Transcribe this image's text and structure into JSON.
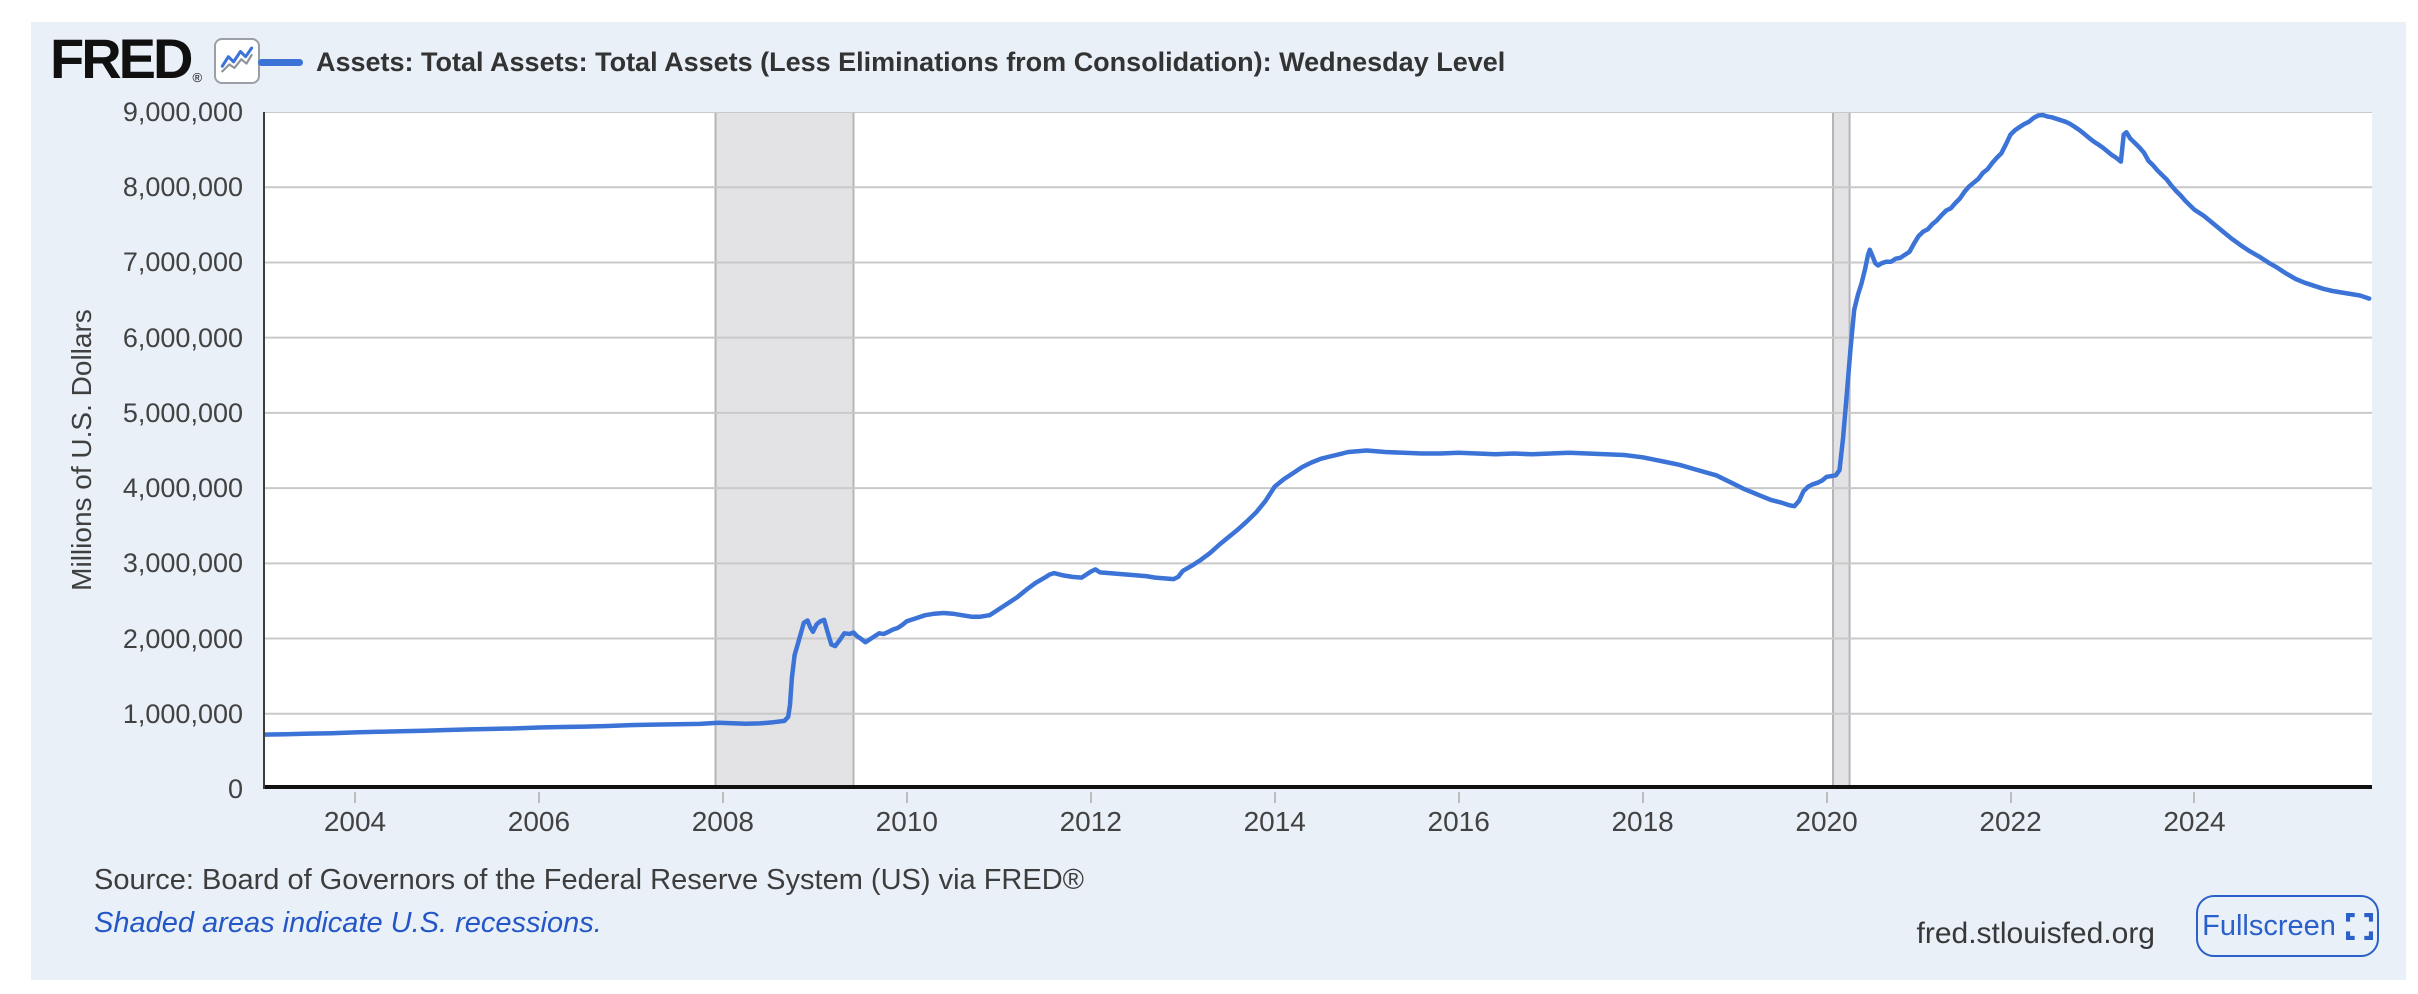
{
  "header": {
    "logo_text": "FRED",
    "registered_mark": "®",
    "legend_label": "Assets: Total Assets: Total Assets (Less Eliminations from Consolidation): Wednesday Level"
  },
  "footer": {
    "source": "Source: Board of Governors of the Federal Reserve System (US) via FRED®",
    "recession_note": "Shaded areas indicate U.S. recessions.",
    "site": "fred.stlouisfed.org",
    "fullscreen_label": "Fullscreen"
  },
  "colors": {
    "panel_bg": "#e9f0f8",
    "plot_bg": "#ffffff",
    "line_blue": "#3c73d7",
    "grid_gray": "#c9c9c9",
    "recession_fill": "#e3e3e6",
    "recession_edge": "#b5b5b8",
    "axis_black": "#111111",
    "y_axis_line": "#3c3c3c",
    "link_blue": "#2457c5",
    "button_blue": "#2a60c9",
    "text_dark": "#3d3d3d"
  },
  "icons": {
    "fred_logo_chart_icon": "line-chart-icon",
    "fullscreen_icon": "expand-corners-icon"
  },
  "chart_data": {
    "type": "line",
    "title": "Assets: Total Assets: Total Assets (Less Eliminations from Consolidation): Wednesday Level",
    "xlabel": "",
    "ylabel": "Millions of U.S. Dollars",
    "xlim": [
      2003.0,
      2025.93
    ],
    "ylim": [
      0,
      9000000
    ],
    "grid": "horizontal",
    "legend_position": "top",
    "y_ticks": [
      {
        "label": "0",
        "value": 0
      },
      {
        "label": "1,000,000",
        "value": 1000000
      },
      {
        "label": "2,000,000",
        "value": 2000000
      },
      {
        "label": "3,000,000",
        "value": 3000000
      },
      {
        "label": "4,000,000",
        "value": 4000000
      },
      {
        "label": "5,000,000",
        "value": 5000000
      },
      {
        "label": "6,000,000",
        "value": 6000000
      },
      {
        "label": "7,000,000",
        "value": 7000000
      },
      {
        "label": "8,000,000",
        "value": 8000000
      },
      {
        "label": "9,000,000",
        "value": 9000000
      }
    ],
    "x_ticks": [
      {
        "label": "2004",
        "value": 2004
      },
      {
        "label": "2006",
        "value": 2006
      },
      {
        "label": "2008",
        "value": 2008
      },
      {
        "label": "2010",
        "value": 2010
      },
      {
        "label": "2012",
        "value": 2012
      },
      {
        "label": "2014",
        "value": 2014
      },
      {
        "label": "2016",
        "value": 2016
      },
      {
        "label": "2018",
        "value": 2018
      },
      {
        "label": "2020",
        "value": 2020
      },
      {
        "label": "2022",
        "value": 2022
      },
      {
        "label": "2024",
        "value": 2024
      }
    ],
    "recession_bands": [
      [
        2007.92,
        2009.42
      ],
      [
        2020.07,
        2020.25
      ]
    ],
    "series": [
      {
        "name": "Assets: Total Assets: Total Assets (Less Eliminations from Consolidation): Wednesday Level",
        "color": "#3c73d7",
        "points": [
          [
            2003.0,
            723000
          ],
          [
            2003.25,
            729000
          ],
          [
            2003.5,
            736000
          ],
          [
            2003.75,
            742000
          ],
          [
            2004.0,
            752000
          ],
          [
            2004.25,
            760000
          ],
          [
            2004.5,
            768000
          ],
          [
            2004.75,
            775000
          ],
          [
            2005.0,
            785000
          ],
          [
            2005.25,
            792000
          ],
          [
            2005.5,
            799000
          ],
          [
            2005.75,
            806000
          ],
          [
            2006.0,
            818000
          ],
          [
            2006.25,
            824000
          ],
          [
            2006.5,
            830000
          ],
          [
            2006.75,
            838000
          ],
          [
            2007.0,
            850000
          ],
          [
            2007.25,
            856000
          ],
          [
            2007.5,
            860000
          ],
          [
            2007.75,
            866000
          ],
          [
            2007.95,
            880000
          ],
          [
            2008.1,
            873000
          ],
          [
            2008.25,
            868000
          ],
          [
            2008.4,
            872000
          ],
          [
            2008.55,
            888000
          ],
          [
            2008.67,
            905000
          ],
          [
            2008.71,
            960000
          ],
          [
            2008.73,
            1120000
          ],
          [
            2008.75,
            1480000
          ],
          [
            2008.78,
            1780000
          ],
          [
            2008.82,
            1950000
          ],
          [
            2008.85,
            2080000
          ],
          [
            2008.88,
            2210000
          ],
          [
            2008.92,
            2240000
          ],
          [
            2008.95,
            2150000
          ],
          [
            2008.98,
            2090000
          ],
          [
            2009.02,
            2190000
          ],
          [
            2009.06,
            2230000
          ],
          [
            2009.1,
            2250000
          ],
          [
            2009.14,
            2080000
          ],
          [
            2009.18,
            1920000
          ],
          [
            2009.22,
            1900000
          ],
          [
            2009.27,
            1980000
          ],
          [
            2009.32,
            2070000
          ],
          [
            2009.38,
            2060000
          ],
          [
            2009.42,
            2080000
          ],
          [
            2009.46,
            2030000
          ],
          [
            2009.5,
            2000000
          ],
          [
            2009.55,
            1950000
          ],
          [
            2009.6,
            1990000
          ],
          [
            2009.65,
            2030000
          ],
          [
            2009.7,
            2070000
          ],
          [
            2009.75,
            2060000
          ],
          [
            2009.8,
            2090000
          ],
          [
            2009.85,
            2120000
          ],
          [
            2009.9,
            2140000
          ],
          [
            2009.95,
            2180000
          ],
          [
            2010.0,
            2230000
          ],
          [
            2010.1,
            2270000
          ],
          [
            2010.2,
            2310000
          ],
          [
            2010.3,
            2330000
          ],
          [
            2010.4,
            2340000
          ],
          [
            2010.5,
            2330000
          ],
          [
            2010.6,
            2310000
          ],
          [
            2010.7,
            2290000
          ],
          [
            2010.8,
            2290000
          ],
          [
            2010.9,
            2310000
          ],
          [
            2011.0,
            2390000
          ],
          [
            2011.1,
            2470000
          ],
          [
            2011.2,
            2550000
          ],
          [
            2011.3,
            2650000
          ],
          [
            2011.4,
            2740000
          ],
          [
            2011.5,
            2810000
          ],
          [
            2011.55,
            2850000
          ],
          [
            2011.6,
            2870000
          ],
          [
            2011.7,
            2840000
          ],
          [
            2011.8,
            2820000
          ],
          [
            2011.9,
            2810000
          ],
          [
            2012.0,
            2890000
          ],
          [
            2012.05,
            2920000
          ],
          [
            2012.1,
            2880000
          ],
          [
            2012.2,
            2870000
          ],
          [
            2012.3,
            2860000
          ],
          [
            2012.4,
            2850000
          ],
          [
            2012.5,
            2840000
          ],
          [
            2012.6,
            2830000
          ],
          [
            2012.7,
            2810000
          ],
          [
            2012.8,
            2800000
          ],
          [
            2012.9,
            2790000
          ],
          [
            2012.95,
            2820000
          ],
          [
            2013.0,
            2900000
          ],
          [
            2013.1,
            2970000
          ],
          [
            2013.2,
            3050000
          ],
          [
            2013.3,
            3140000
          ],
          [
            2013.4,
            3250000
          ],
          [
            2013.5,
            3350000
          ],
          [
            2013.6,
            3450000
          ],
          [
            2013.7,
            3560000
          ],
          [
            2013.8,
            3680000
          ],
          [
            2013.9,
            3830000
          ],
          [
            2014.0,
            4020000
          ],
          [
            2014.1,
            4120000
          ],
          [
            2014.2,
            4200000
          ],
          [
            2014.3,
            4280000
          ],
          [
            2014.4,
            4340000
          ],
          [
            2014.5,
            4390000
          ],
          [
            2014.6,
            4420000
          ],
          [
            2014.7,
            4450000
          ],
          [
            2014.8,
            4480000
          ],
          [
            2014.9,
            4490000
          ],
          [
            2015.0,
            4500000
          ],
          [
            2015.2,
            4480000
          ],
          [
            2015.4,
            4470000
          ],
          [
            2015.6,
            4460000
          ],
          [
            2015.8,
            4460000
          ],
          [
            2016.0,
            4470000
          ],
          [
            2016.2,
            4460000
          ],
          [
            2016.4,
            4450000
          ],
          [
            2016.6,
            4460000
          ],
          [
            2016.8,
            4450000
          ],
          [
            2017.0,
            4460000
          ],
          [
            2017.2,
            4470000
          ],
          [
            2017.4,
            4460000
          ],
          [
            2017.6,
            4450000
          ],
          [
            2017.8,
            4440000
          ],
          [
            2018.0,
            4410000
          ],
          [
            2018.2,
            4360000
          ],
          [
            2018.4,
            4310000
          ],
          [
            2018.6,
            4240000
          ],
          [
            2018.8,
            4170000
          ],
          [
            2019.0,
            4050000
          ],
          [
            2019.1,
            3990000
          ],
          [
            2019.2,
            3940000
          ],
          [
            2019.3,
            3890000
          ],
          [
            2019.4,
            3840000
          ],
          [
            2019.5,
            3810000
          ],
          [
            2019.6,
            3770000
          ],
          [
            2019.65,
            3760000
          ],
          [
            2019.7,
            3830000
          ],
          [
            2019.75,
            3960000
          ],
          [
            2019.8,
            4020000
          ],
          [
            2019.85,
            4050000
          ],
          [
            2019.9,
            4070000
          ],
          [
            2019.95,
            4100000
          ],
          [
            2020.0,
            4150000
          ],
          [
            2020.05,
            4160000
          ],
          [
            2020.1,
            4170000
          ],
          [
            2020.14,
            4240000
          ],
          [
            2020.18,
            4670000
          ],
          [
            2020.22,
            5250000
          ],
          [
            2020.26,
            5850000
          ],
          [
            2020.3,
            6370000
          ],
          [
            2020.34,
            6570000
          ],
          [
            2020.38,
            6720000
          ],
          [
            2020.42,
            6920000
          ],
          [
            2020.45,
            7100000
          ],
          [
            2020.47,
            7170000
          ],
          [
            2020.5,
            7080000
          ],
          [
            2020.53,
            6990000
          ],
          [
            2020.56,
            6960000
          ],
          [
            2020.6,
            6990000
          ],
          [
            2020.65,
            7010000
          ],
          [
            2020.7,
            7010000
          ],
          [
            2020.75,
            7050000
          ],
          [
            2020.8,
            7060000
          ],
          [
            2020.85,
            7100000
          ],
          [
            2020.9,
            7140000
          ],
          [
            2020.95,
            7250000
          ],
          [
            2021.0,
            7350000
          ],
          [
            2021.05,
            7410000
          ],
          [
            2021.1,
            7440000
          ],
          [
            2021.15,
            7510000
          ],
          [
            2021.2,
            7560000
          ],
          [
            2021.25,
            7630000
          ],
          [
            2021.3,
            7690000
          ],
          [
            2021.35,
            7720000
          ],
          [
            2021.4,
            7790000
          ],
          [
            2021.45,
            7850000
          ],
          [
            2021.5,
            7940000
          ],
          [
            2021.55,
            8010000
          ],
          [
            2021.6,
            8060000
          ],
          [
            2021.65,
            8110000
          ],
          [
            2021.7,
            8190000
          ],
          [
            2021.75,
            8240000
          ],
          [
            2021.8,
            8320000
          ],
          [
            2021.85,
            8390000
          ],
          [
            2021.9,
            8450000
          ],
          [
            2021.95,
            8570000
          ],
          [
            2022.0,
            8700000
          ],
          [
            2022.05,
            8760000
          ],
          [
            2022.1,
            8800000
          ],
          [
            2022.15,
            8840000
          ],
          [
            2022.2,
            8870000
          ],
          [
            2022.25,
            8920000
          ],
          [
            2022.3,
            8954000
          ],
          [
            2022.35,
            8960000
          ],
          [
            2022.4,
            8940000
          ],
          [
            2022.45,
            8930000
          ],
          [
            2022.5,
            8910000
          ],
          [
            2022.55,
            8890000
          ],
          [
            2022.6,
            8870000
          ],
          [
            2022.65,
            8840000
          ],
          [
            2022.7,
            8800000
          ],
          [
            2022.75,
            8760000
          ],
          [
            2022.8,
            8710000
          ],
          [
            2022.85,
            8660000
          ],
          [
            2022.9,
            8610000
          ],
          [
            2022.95,
            8570000
          ],
          [
            2023.0,
            8530000
          ],
          [
            2023.05,
            8480000
          ],
          [
            2023.1,
            8430000
          ],
          [
            2023.15,
            8390000
          ],
          [
            2023.2,
            8340000
          ],
          [
            2023.23,
            8700000
          ],
          [
            2023.26,
            8730000
          ],
          [
            2023.3,
            8650000
          ],
          [
            2023.35,
            8590000
          ],
          [
            2023.4,
            8530000
          ],
          [
            2023.45,
            8460000
          ],
          [
            2023.5,
            8350000
          ],
          [
            2023.55,
            8290000
          ],
          [
            2023.6,
            8220000
          ],
          [
            2023.65,
            8160000
          ],
          [
            2023.7,
            8100000
          ],
          [
            2023.75,
            8020000
          ],
          [
            2023.8,
            7950000
          ],
          [
            2023.85,
            7890000
          ],
          [
            2023.9,
            7820000
          ],
          [
            2023.95,
            7760000
          ],
          [
            2024.0,
            7700000
          ],
          [
            2024.1,
            7620000
          ],
          [
            2024.2,
            7520000
          ],
          [
            2024.3,
            7420000
          ],
          [
            2024.4,
            7320000
          ],
          [
            2024.5,
            7230000
          ],
          [
            2024.6,
            7150000
          ],
          [
            2024.7,
            7080000
          ],
          [
            2024.8,
            7000000
          ],
          [
            2024.9,
            6930000
          ],
          [
            2025.0,
            6850000
          ],
          [
            2025.1,
            6780000
          ],
          [
            2025.2,
            6730000
          ],
          [
            2025.3,
            6690000
          ],
          [
            2025.4,
            6650000
          ],
          [
            2025.5,
            6620000
          ],
          [
            2025.6,
            6600000
          ],
          [
            2025.7,
            6580000
          ],
          [
            2025.8,
            6560000
          ],
          [
            2025.9,
            6520000
          ]
        ]
      }
    ]
  }
}
